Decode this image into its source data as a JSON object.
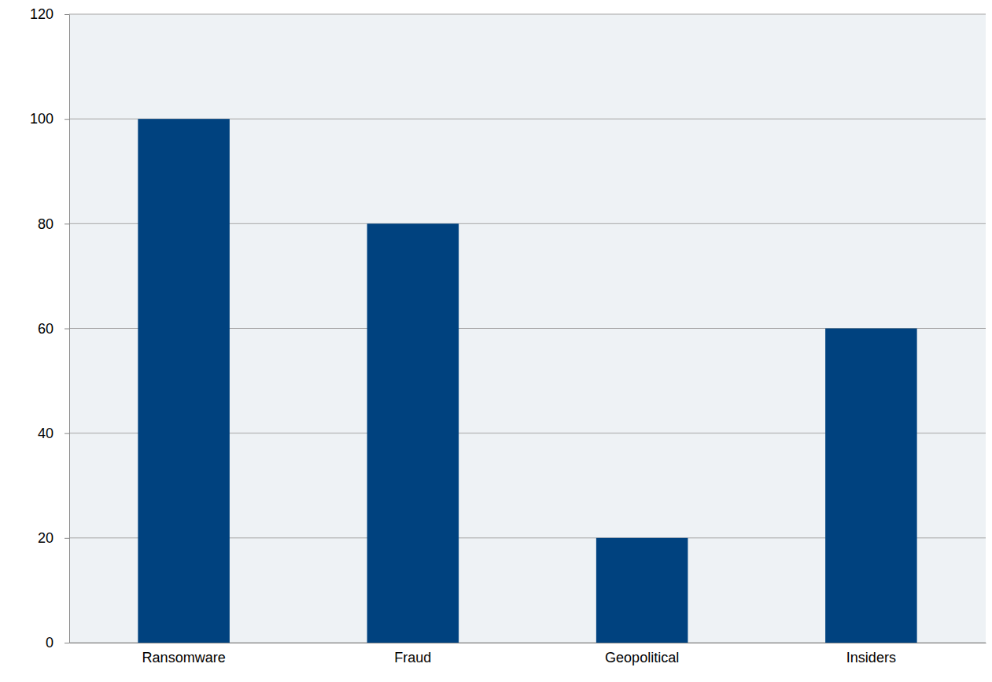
{
  "chart_data": {
    "type": "bar",
    "categories": [
      "Ransomware",
      "Fraud",
      "Geopolitical",
      "Insiders"
    ],
    "values": [
      100,
      80,
      20,
      60
    ],
    "color": "#00427f",
    "ylim": [
      0,
      120
    ],
    "yticks": [
      0,
      20,
      40,
      60,
      80,
      100,
      120
    ],
    "grid": true
  }
}
